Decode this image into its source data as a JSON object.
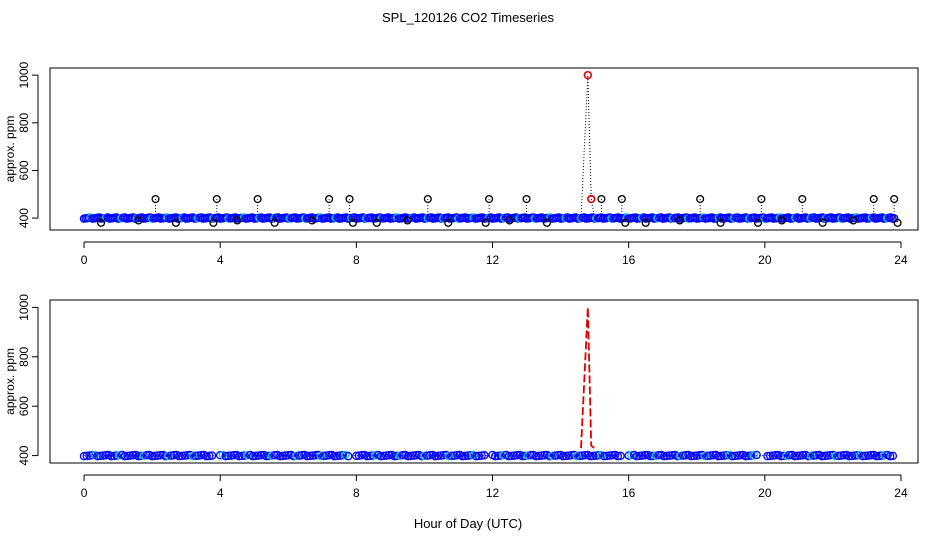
{
  "title": "SPL_120126  CO2 Timeseries",
  "xlabel": "Hour of Day (UTC)",
  "colors": {
    "axis": "#000000",
    "primary": "#0000ff",
    "spike": "#dd0000",
    "accent": "#00cccc",
    "outlier": "#000000"
  },
  "chart_data": [
    {
      "type": "scatter",
      "panel": "top",
      "ylabel": "approx. ppm",
      "xlim": [
        -1,
        24.5
      ],
      "ylim": [
        350,
        1030
      ],
      "x_ticks": [
        0,
        4,
        8,
        12,
        16,
        20,
        24
      ],
      "y_ticks": [
        400,
        600,
        800,
        1000
      ],
      "series": [
        {
          "style": "baseline-markers",
          "x_start": 0,
          "x_end": 23.8,
          "step": 0.05,
          "y": 400,
          "gaps": []
        },
        {
          "style": "spike",
          "x": [
            14.6,
            14.8,
            14.9,
            15.0
          ],
          "y": [
            400,
            1000,
            480,
            400
          ]
        },
        {
          "style": "outliers",
          "x": [
            0.5,
            1.6,
            2.1,
            2.7,
            3.8,
            3.9,
            4.5,
            5.1,
            5.6,
            6.7,
            7.2,
            7.8,
            7.9,
            8.6,
            9.5,
            10.1,
            10.7,
            11.8,
            11.9,
            12.5,
            13.0,
            13.6,
            15.2,
            15.8,
            15.9,
            16.5,
            17.5,
            18.1,
            18.7,
            19.8,
            19.9,
            20.5,
            21.1,
            21.7,
            22.6,
            23.2,
            23.8,
            23.9
          ],
          "y": [
            380,
            390,
            480,
            380,
            380,
            480,
            390,
            480,
            380,
            390,
            480,
            480,
            380,
            380,
            390,
            480,
            380,
            380,
            480,
            390,
            480,
            380,
            480,
            480,
            380,
            380,
            390,
            480,
            380,
            380,
            480,
            390,
            480,
            380,
            390,
            480,
            480,
            380
          ]
        }
      ]
    },
    {
      "type": "line",
      "panel": "bottom",
      "ylabel": "approx. ppm",
      "xlim": [
        -1,
        24.5
      ],
      "ylim": [
        370,
        1030
      ],
      "x_ticks": [
        0,
        4,
        8,
        12,
        16,
        20,
        24
      ],
      "y_ticks": [
        400,
        600,
        800,
        1000
      ],
      "series": [
        {
          "style": "baseline-markers",
          "x_start": 0,
          "x_end": 23.8,
          "step": 0.08,
          "y": 400,
          "gaps": [
            [
              3.8,
              4.0
            ],
            [
              7.8,
              8.0
            ],
            [
              11.8,
              12.0
            ],
            [
              15.8,
              16.0
            ],
            [
              19.8,
              20.0
            ]
          ]
        },
        {
          "style": "spike",
          "x": [
            14.6,
            14.8,
            14.9,
            15.0
          ],
          "y": [
            430,
            1000,
            440,
            430
          ]
        }
      ]
    }
  ]
}
